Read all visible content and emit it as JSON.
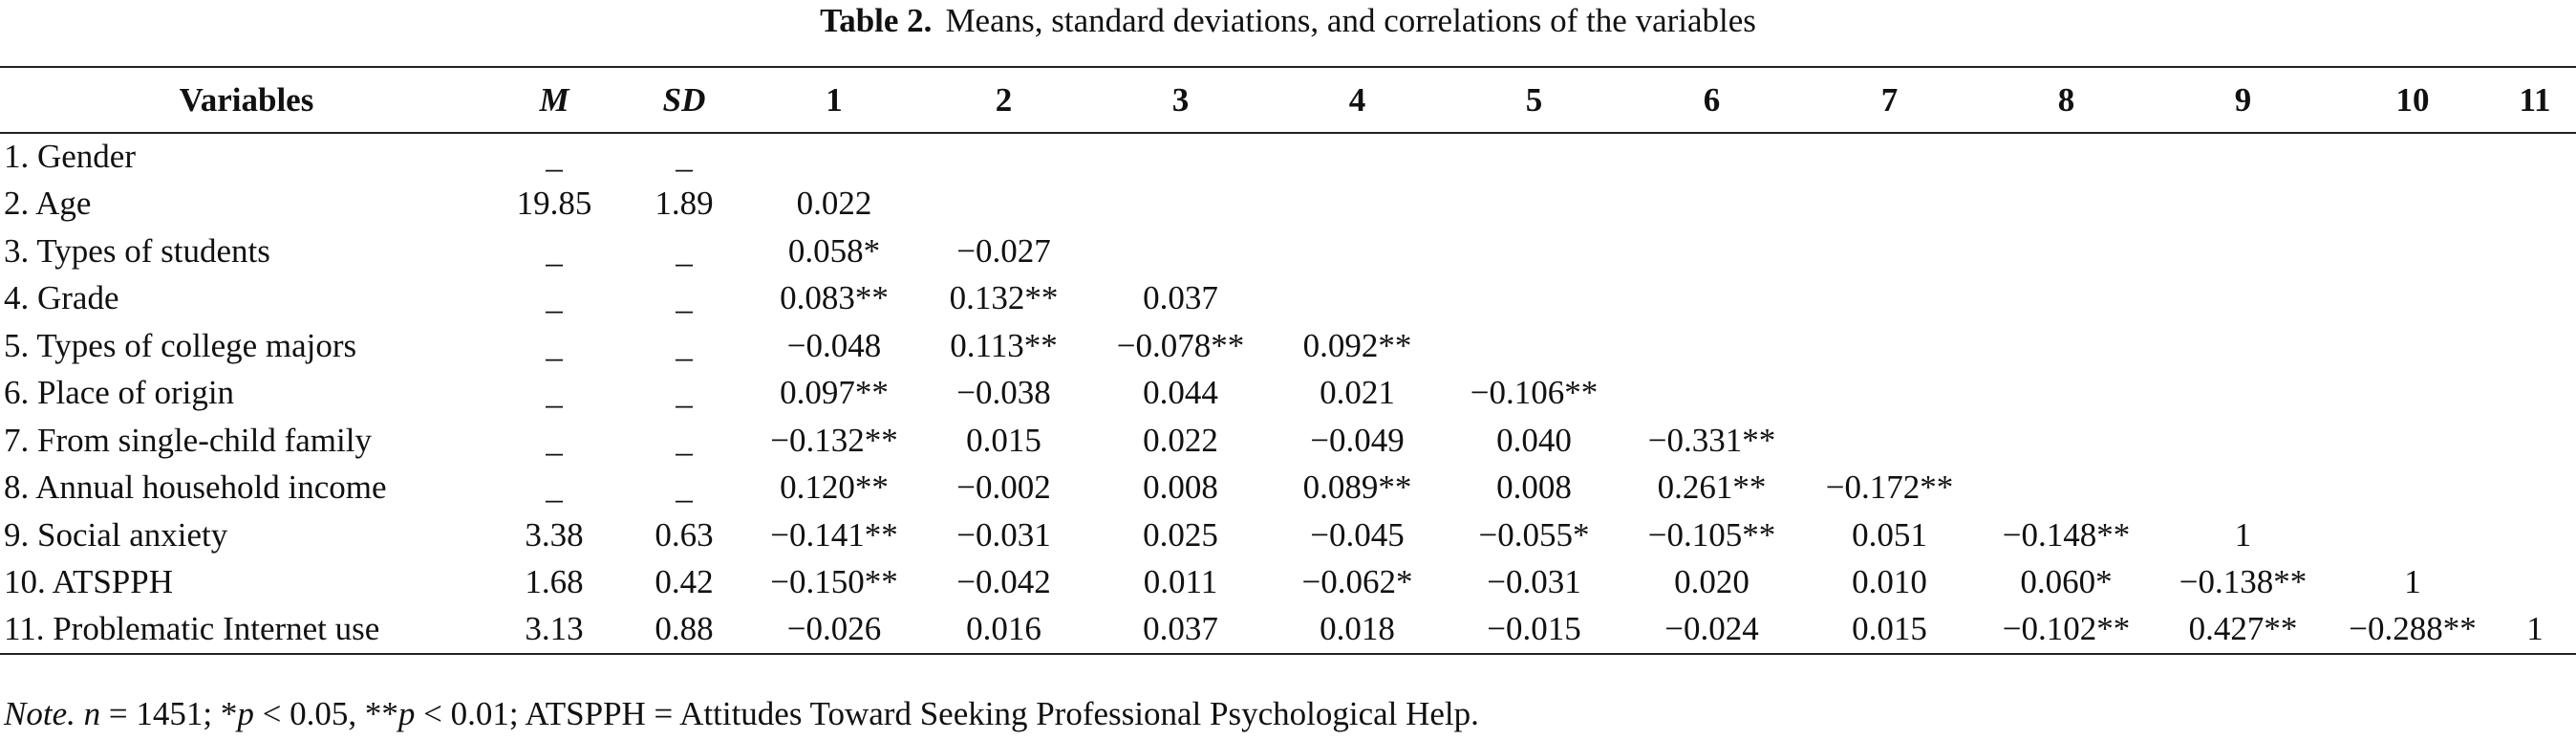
{
  "title": {
    "label": "Table 2.",
    "text": "Means, standard deviations, and correlations of the variables"
  },
  "table": {
    "header": [
      "Variables",
      "M",
      "SD",
      "1",
      "2",
      "3",
      "4",
      "5",
      "6",
      "7",
      "8",
      "9",
      "10",
      "11"
    ],
    "rows": [
      [
        "1. Gender",
        "_",
        "_"
      ],
      [
        "2. Age",
        "19.85",
        "1.89",
        "0.022"
      ],
      [
        "3. Types of students",
        "_",
        "_",
        "0.058*",
        "−0.027"
      ],
      [
        "4. Grade",
        "_",
        "_",
        "0.083**",
        "0.132**",
        "0.037"
      ],
      [
        "5. Types of college majors",
        "_",
        "_",
        "−0.048",
        "0.113**",
        "−0.078**",
        "0.092**"
      ],
      [
        "6. Place of origin",
        "_",
        "_",
        "0.097**",
        "−0.038",
        "0.044",
        "0.021",
        "−0.106**"
      ],
      [
        "7. From single-child family",
        "_",
        "_",
        "−0.132**",
        "0.015",
        "0.022",
        "−0.049",
        "0.040",
        "−0.331**"
      ],
      [
        "8. Annual household income",
        "_",
        "_",
        "0.120**",
        "−0.002",
        "0.008",
        "0.089**",
        "0.008",
        "0.261**",
        "−0.172**"
      ],
      [
        "9. Social anxiety",
        "3.38",
        "0.63",
        "−0.141**",
        "−0.031",
        "0.025",
        "−0.045",
        "−0.055*",
        "−0.105**",
        "0.051",
        "−0.148**",
        "1"
      ],
      [
        "10. ATSPPH",
        "1.68",
        "0.42",
        "−0.150**",
        "−0.042",
        "0.011",
        "−0.062*",
        "−0.031",
        "0.020",
        "0.010",
        "0.060*",
        "−0.138**",
        "1"
      ],
      [
        "11. Problematic Internet use",
        "3.13",
        "0.88",
        "−0.026",
        "0.016",
        "0.037",
        "0.018",
        "−0.015",
        "−0.024",
        "0.015",
        "−0.102**",
        "0.427**",
        "−0.288**",
        "1"
      ]
    ]
  },
  "note": [
    "Note.",
    " n",
    " = 1451; *",
    "p",
    " < 0.05, **",
    "p",
    " < 0.01; ATSPPH = Attitudes Toward Seeking Professional Psychological Help."
  ]
}
